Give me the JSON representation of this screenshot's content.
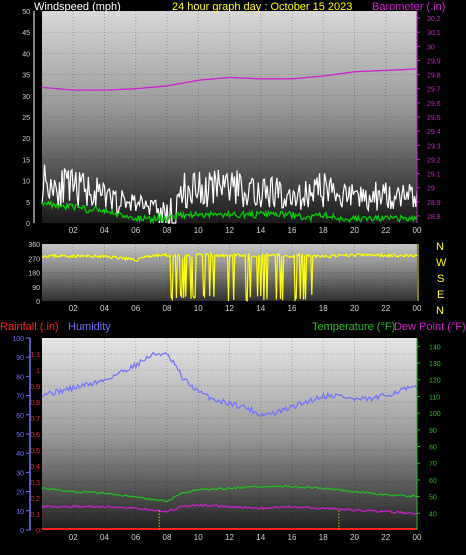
{
  "header": {
    "windspeed_label": "Windspeed (mph)",
    "title": "24 hour graph day : October 15 2023",
    "barometer_label": "Barometer (.in)"
  },
  "colors": {
    "wind_label": "#ffffff",
    "title": "#ffff00",
    "barometer": "#d020d0",
    "wind_gust": "#ffffff",
    "wind_avg": "#00cc00",
    "wind_dir": "#ffff00",
    "rain": "#ff2020",
    "humidity": "#7070ff",
    "temperature": "#20c020",
    "dewpoint": "#cc20cc",
    "compass": "#ffff00"
  },
  "compass": [
    "N",
    "W",
    "S",
    "E",
    "N"
  ],
  "bottom_header": {
    "rain_label": "Rainfall (.in)",
    "humidity_label": "Humidity",
    "temperature_label": "Temperature (°F)",
    "dewpoint_label": "Dew Point (°F)"
  },
  "chart_data": [
    {
      "type": "line",
      "x_ticks": [
        "02",
        "04",
        "06",
        "08",
        "10",
        "12",
        "14",
        "16",
        "18",
        "20",
        "22",
        "00"
      ],
      "y_left": {
        "ticks": [
          0,
          5,
          10,
          15,
          20,
          25,
          30,
          35,
          40,
          45,
          50
        ],
        "ylim": [
          0,
          50
        ]
      },
      "y_right": {
        "ticks": [
          28.8,
          28.9,
          29,
          29.1,
          29.2,
          29.3,
          29.4,
          29.5,
          29.6,
          29.7,
          29.8,
          29.9,
          30,
          30.1,
          30.2
        ],
        "ylim": [
          28.75,
          30.25
        ]
      },
      "series": [
        {
          "axis": "right",
          "hours": [
            0,
            2,
            4,
            6,
            8,
            10,
            12,
            14,
            16,
            18,
            20,
            22,
            24
          ],
          "values": [
            29.71,
            29.69,
            29.69,
            29.7,
            29.72,
            29.76,
            29.78,
            29.77,
            29.77,
            29.79,
            29.82,
            29.83,
            29.84
          ]
        },
        {
          "axis": "left",
          "hours": [
            0,
            1,
            2,
            3,
            4,
            5,
            6,
            7,
            8,
            9,
            10,
            11,
            12,
            13,
            14,
            15,
            16,
            17,
            18,
            19,
            20,
            21,
            22,
            23,
            24
          ],
          "values": [
            10,
            9,
            8,
            8,
            6,
            5,
            5,
            4,
            3,
            8,
            8,
            8,
            9,
            8,
            8,
            7,
            6,
            7,
            8,
            7,
            6,
            6,
            7,
            6,
            6
          ]
        },
        {
          "axis": "left",
          "hours": [
            0,
            1,
            2,
            3,
            4,
            5,
            6,
            7,
            8,
            9,
            10,
            11,
            12,
            13,
            14,
            15,
            16,
            17,
            18,
            19,
            20,
            21,
            22,
            23,
            24
          ],
          "values": [
            5,
            4,
            4,
            3,
            3,
            2,
            1,
            1,
            1,
            2,
            2,
            2,
            2,
            2,
            2,
            2,
            2,
            1,
            2,
            1,
            1,
            1,
            1,
            1,
            1
          ]
        }
      ]
    },
    {
      "type": "line",
      "x_ticks": [
        "02",
        "04",
        "06",
        "08",
        "10",
        "12",
        "14",
        "16",
        "18",
        "20",
        "22",
        "00"
      ],
      "y_left": {
        "ticks": [
          0,
          90,
          180,
          270,
          360
        ],
        "ylim": [
          0,
          360
        ]
      },
      "series": [
        {
          "hours": [
            0,
            2,
            4,
            5,
            6,
            6.5,
            7,
            8,
            9,
            10,
            11,
            12,
            13,
            14,
            15,
            16,
            17,
            18,
            20,
            22,
            24
          ],
          "values": [
            285,
            285,
            280,
            275,
            255,
            280,
            285,
            290,
            280,
            290,
            290,
            285,
            290,
            285,
            290,
            285,
            290,
            280,
            290,
            290,
            285
          ]
        }
      ]
    },
    {
      "type": "line",
      "x_ticks": [
        "02",
        "04",
        "06",
        "08",
        "10",
        "12",
        "14",
        "16",
        "18",
        "20",
        "22",
        "00"
      ],
      "y_left": {
        "ticks": [
          0,
          0.1,
          0.2,
          0.3,
          0.4,
          0.5,
          0.6,
          0.7,
          0.8,
          0.9,
          1,
          1.1
        ],
        "ylim": [
          0,
          1.2
        ]
      },
      "y_humidity": {
        "ticks": [
          0,
          10,
          20,
          30,
          40,
          50,
          60,
          70,
          80,
          90,
          100
        ],
        "ylim": [
          0,
          100
        ]
      },
      "y_right": {
        "ticks": [
          40,
          50,
          60,
          70,
          80,
          90,
          100,
          110,
          120,
          130,
          140
        ],
        "ylim": [
          30,
          145
        ]
      },
      "series": [
        {
          "axis": "humidity",
          "hours": [
            0,
            1,
            2,
            3,
            4,
            5,
            6,
            7,
            7.5,
            8,
            8.5,
            9,
            10,
            11,
            12,
            13,
            14,
            15,
            16,
            17,
            18,
            19,
            20,
            21,
            22,
            23,
            24
          ],
          "values": [
            71,
            72,
            74,
            76,
            78,
            82,
            86,
            91,
            92,
            91,
            86,
            79,
            72,
            68,
            66,
            64,
            60,
            61,
            64,
            67,
            70,
            70,
            68,
            68,
            70,
            73,
            74
          ]
        },
        {
          "axis": "right",
          "hours": [
            0,
            1,
            2,
            4,
            6,
            8,
            9,
            10,
            12,
            14,
            16,
            18,
            20,
            22,
            24
          ],
          "values": [
            55,
            54,
            53,
            52,
            50,
            47,
            52,
            54,
            55,
            56,
            56,
            55,
            53,
            51,
            50
          ]
        },
        {
          "axis": "right",
          "hours": [
            0,
            2,
            4,
            6,
            8,
            9,
            10,
            12,
            14,
            16,
            18,
            20,
            22,
            24
          ],
          "values": [
            44,
            44,
            44,
            43,
            41,
            44,
            45,
            44,
            43,
            44,
            43,
            42,
            41,
            40
          ]
        },
        {
          "axis": "left",
          "hours": [
            0,
            24
          ],
          "values": [
            0,
            0
          ]
        }
      ]
    }
  ]
}
